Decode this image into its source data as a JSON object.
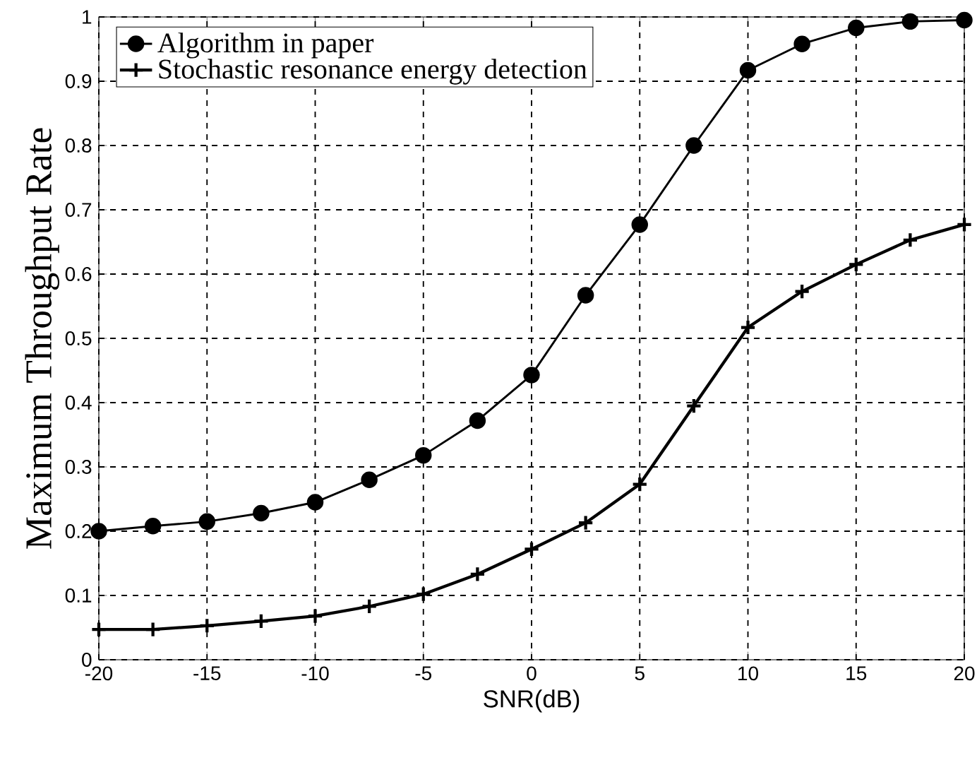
{
  "chart_data": {
    "type": "line",
    "xlabel": "SNR(dB)",
    "ylabel": "Maximum Throughput Rate",
    "x": [
      -20,
      -17.5,
      -15,
      -12.5,
      -10,
      -7.5,
      -5,
      -2.5,
      0,
      2.5,
      5,
      7.5,
      10,
      12.5,
      15,
      17.5,
      20
    ],
    "series": [
      {
        "name": "Algorithm in  paper",
        "color": "#000000",
        "marker": "circle",
        "values": [
          0.2,
          0.208,
          0.215,
          0.228,
          0.245,
          0.28,
          0.318,
          0.372,
          0.443,
          0.567,
          0.677,
          0.8,
          0.917,
          0.958,
          0.983,
          0.993,
          0.995
        ]
      },
      {
        "name": "Stochastic resonance energy detection",
        "color": "#000000",
        "marker": "cross",
        "values": [
          0.047,
          0.047,
          0.053,
          0.06,
          0.068,
          0.083,
          0.102,
          0.133,
          0.172,
          0.213,
          0.273,
          0.395,
          0.517,
          0.573,
          0.615,
          0.653,
          0.677
        ]
      }
    ],
    "xlim": [
      -20,
      20
    ],
    "ylim": [
      0,
      1
    ],
    "xticks": [
      -20,
      -15,
      -10,
      -5,
      0,
      5,
      10,
      15,
      20
    ],
    "yticks": [
      0,
      0.1,
      0.2,
      0.3,
      0.4,
      0.5,
      0.6,
      0.7,
      0.8,
      0.9,
      1
    ],
    "grid": true,
    "legend": "top left",
    "line_style": "solid"
  }
}
